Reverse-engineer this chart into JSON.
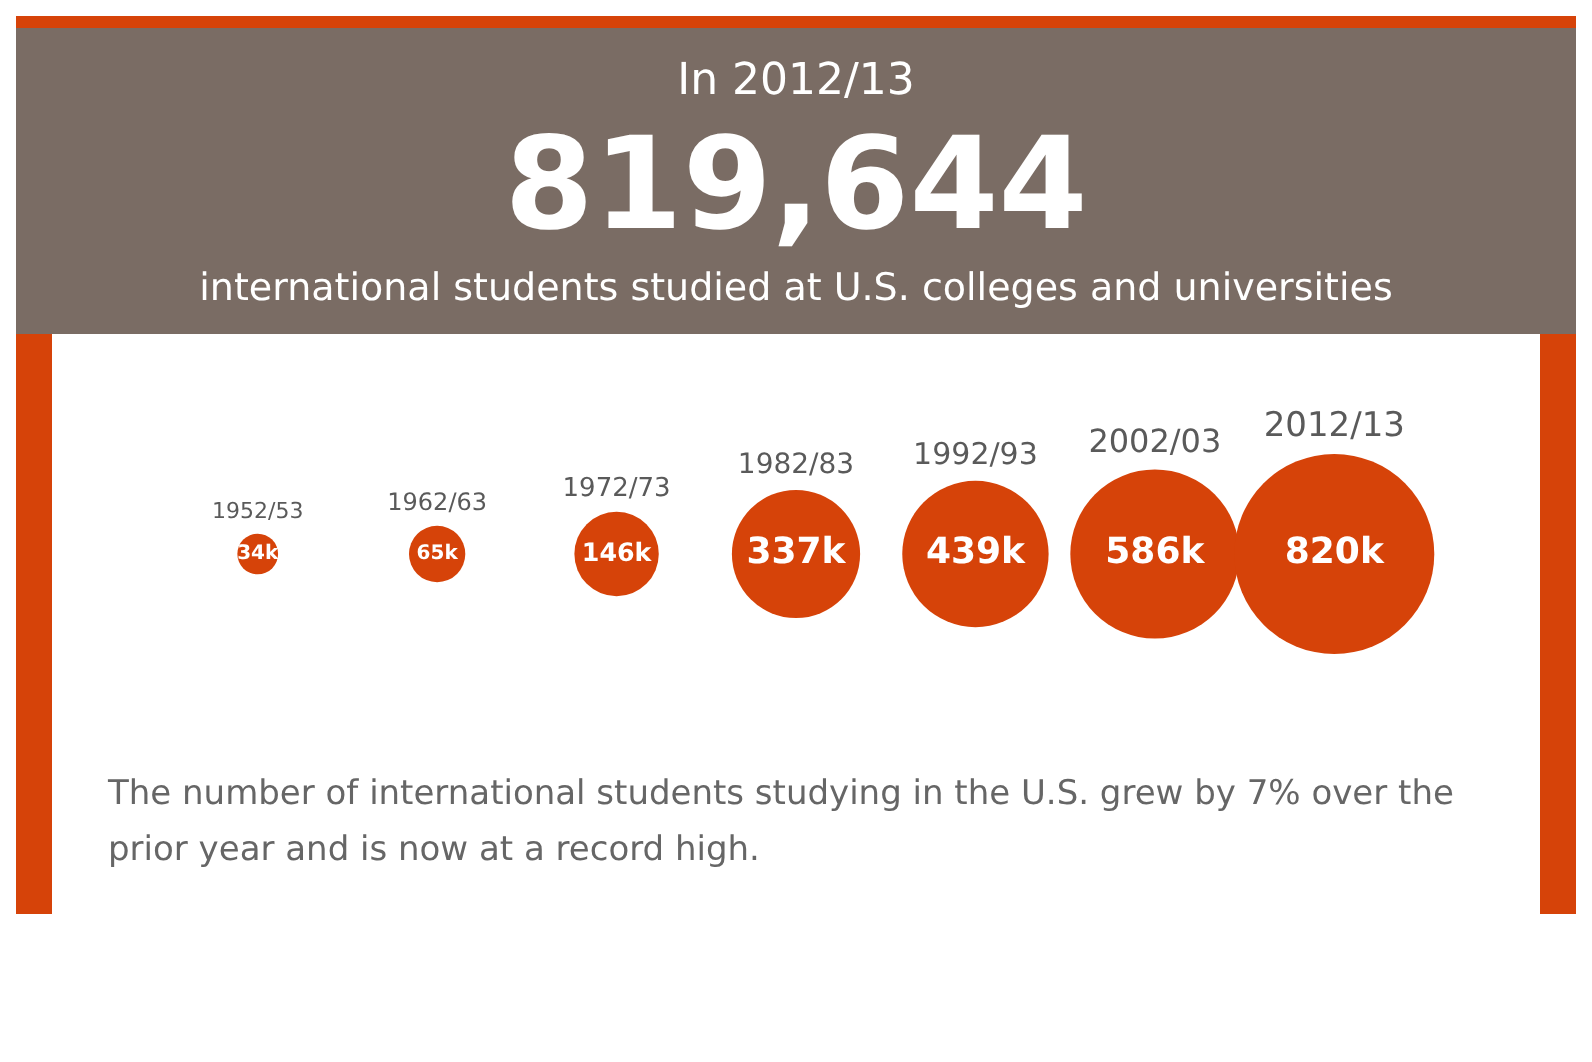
{
  "chart_data": {
    "type": "other",
    "title": "In 2012/13",
    "subtitle": "819,644",
    "annotations": [
      "international students studied at U.S. colleges and universities",
      "The number of international students studying in the U.S. grew by 7% over the prior year and is now at a record high."
    ],
    "categories": [
      "1952/53",
      "1962/63",
      "1972/73",
      "1982/83",
      "1992/93",
      "2002/03",
      "2012/13"
    ],
    "values": [
      34,
      65,
      146,
      337,
      439,
      586,
      820
    ],
    "value_labels": [
      "34k",
      "65k",
      "146k",
      "337k",
      "439k",
      "586k",
      "820k"
    ],
    "color": "#d64309"
  }
}
